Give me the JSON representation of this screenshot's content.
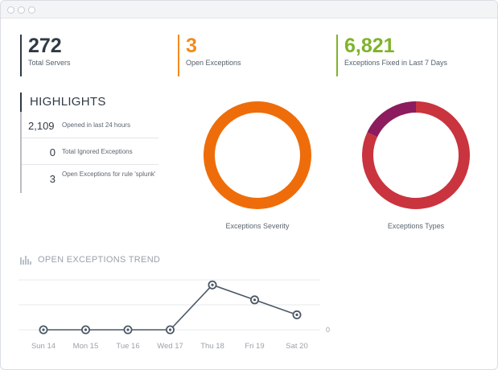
{
  "metrics": {
    "servers": {
      "value": "272",
      "label": "Total Servers",
      "color": "#2f3a45"
    },
    "open": {
      "value": "3",
      "label": "Open Exceptions",
      "color": "#f08c1d"
    },
    "fixed": {
      "value": "6,821",
      "label": "Exceptions Fixed in Last 7 Days",
      "color": "#7fb32b"
    }
  },
  "highlights": {
    "title": "HIGHLIGHTS",
    "items": [
      {
        "value": "2,109",
        "label": "Opened in last 24 hours"
      },
      {
        "value": "0",
        "label": "Total Ignored Exceptions"
      },
      {
        "value": "3",
        "label": "Open Exceptions for rule 'splunk'"
      }
    ]
  },
  "donuts": {
    "severity": {
      "label": "Exceptions Severity"
    },
    "types": {
      "label": "Exceptions Types"
    }
  },
  "trend": {
    "title": "OPEN EXCEPTIONS TREND",
    "icon": "bar-chart-icon",
    "zero_label": "0"
  },
  "chart_data": [
    {
      "type": "pie",
      "title": "Exceptions Severity",
      "slices": [
        {
          "value": 1,
          "color": "#ee6d0a"
        }
      ]
    },
    {
      "type": "pie",
      "title": "Exceptions Types",
      "slices": [
        {
          "value": 0.82,
          "color": "#c9343f"
        },
        {
          "value": 0.18,
          "color": "#8c1c5e"
        }
      ]
    },
    {
      "type": "line",
      "title": "OPEN EXCEPTIONS TREND",
      "categories": [
        "Sun 14",
        "Mon 15",
        "Tue 16",
        "Wed 17",
        "Thu 18",
        "Fri 19",
        "Sat 20"
      ],
      "series": [
        {
          "values": [
            0,
            0,
            0,
            0,
            3,
            2,
            1
          ],
          "color": "#4b5866"
        }
      ],
      "ylim": [
        0,
        4
      ]
    }
  ]
}
